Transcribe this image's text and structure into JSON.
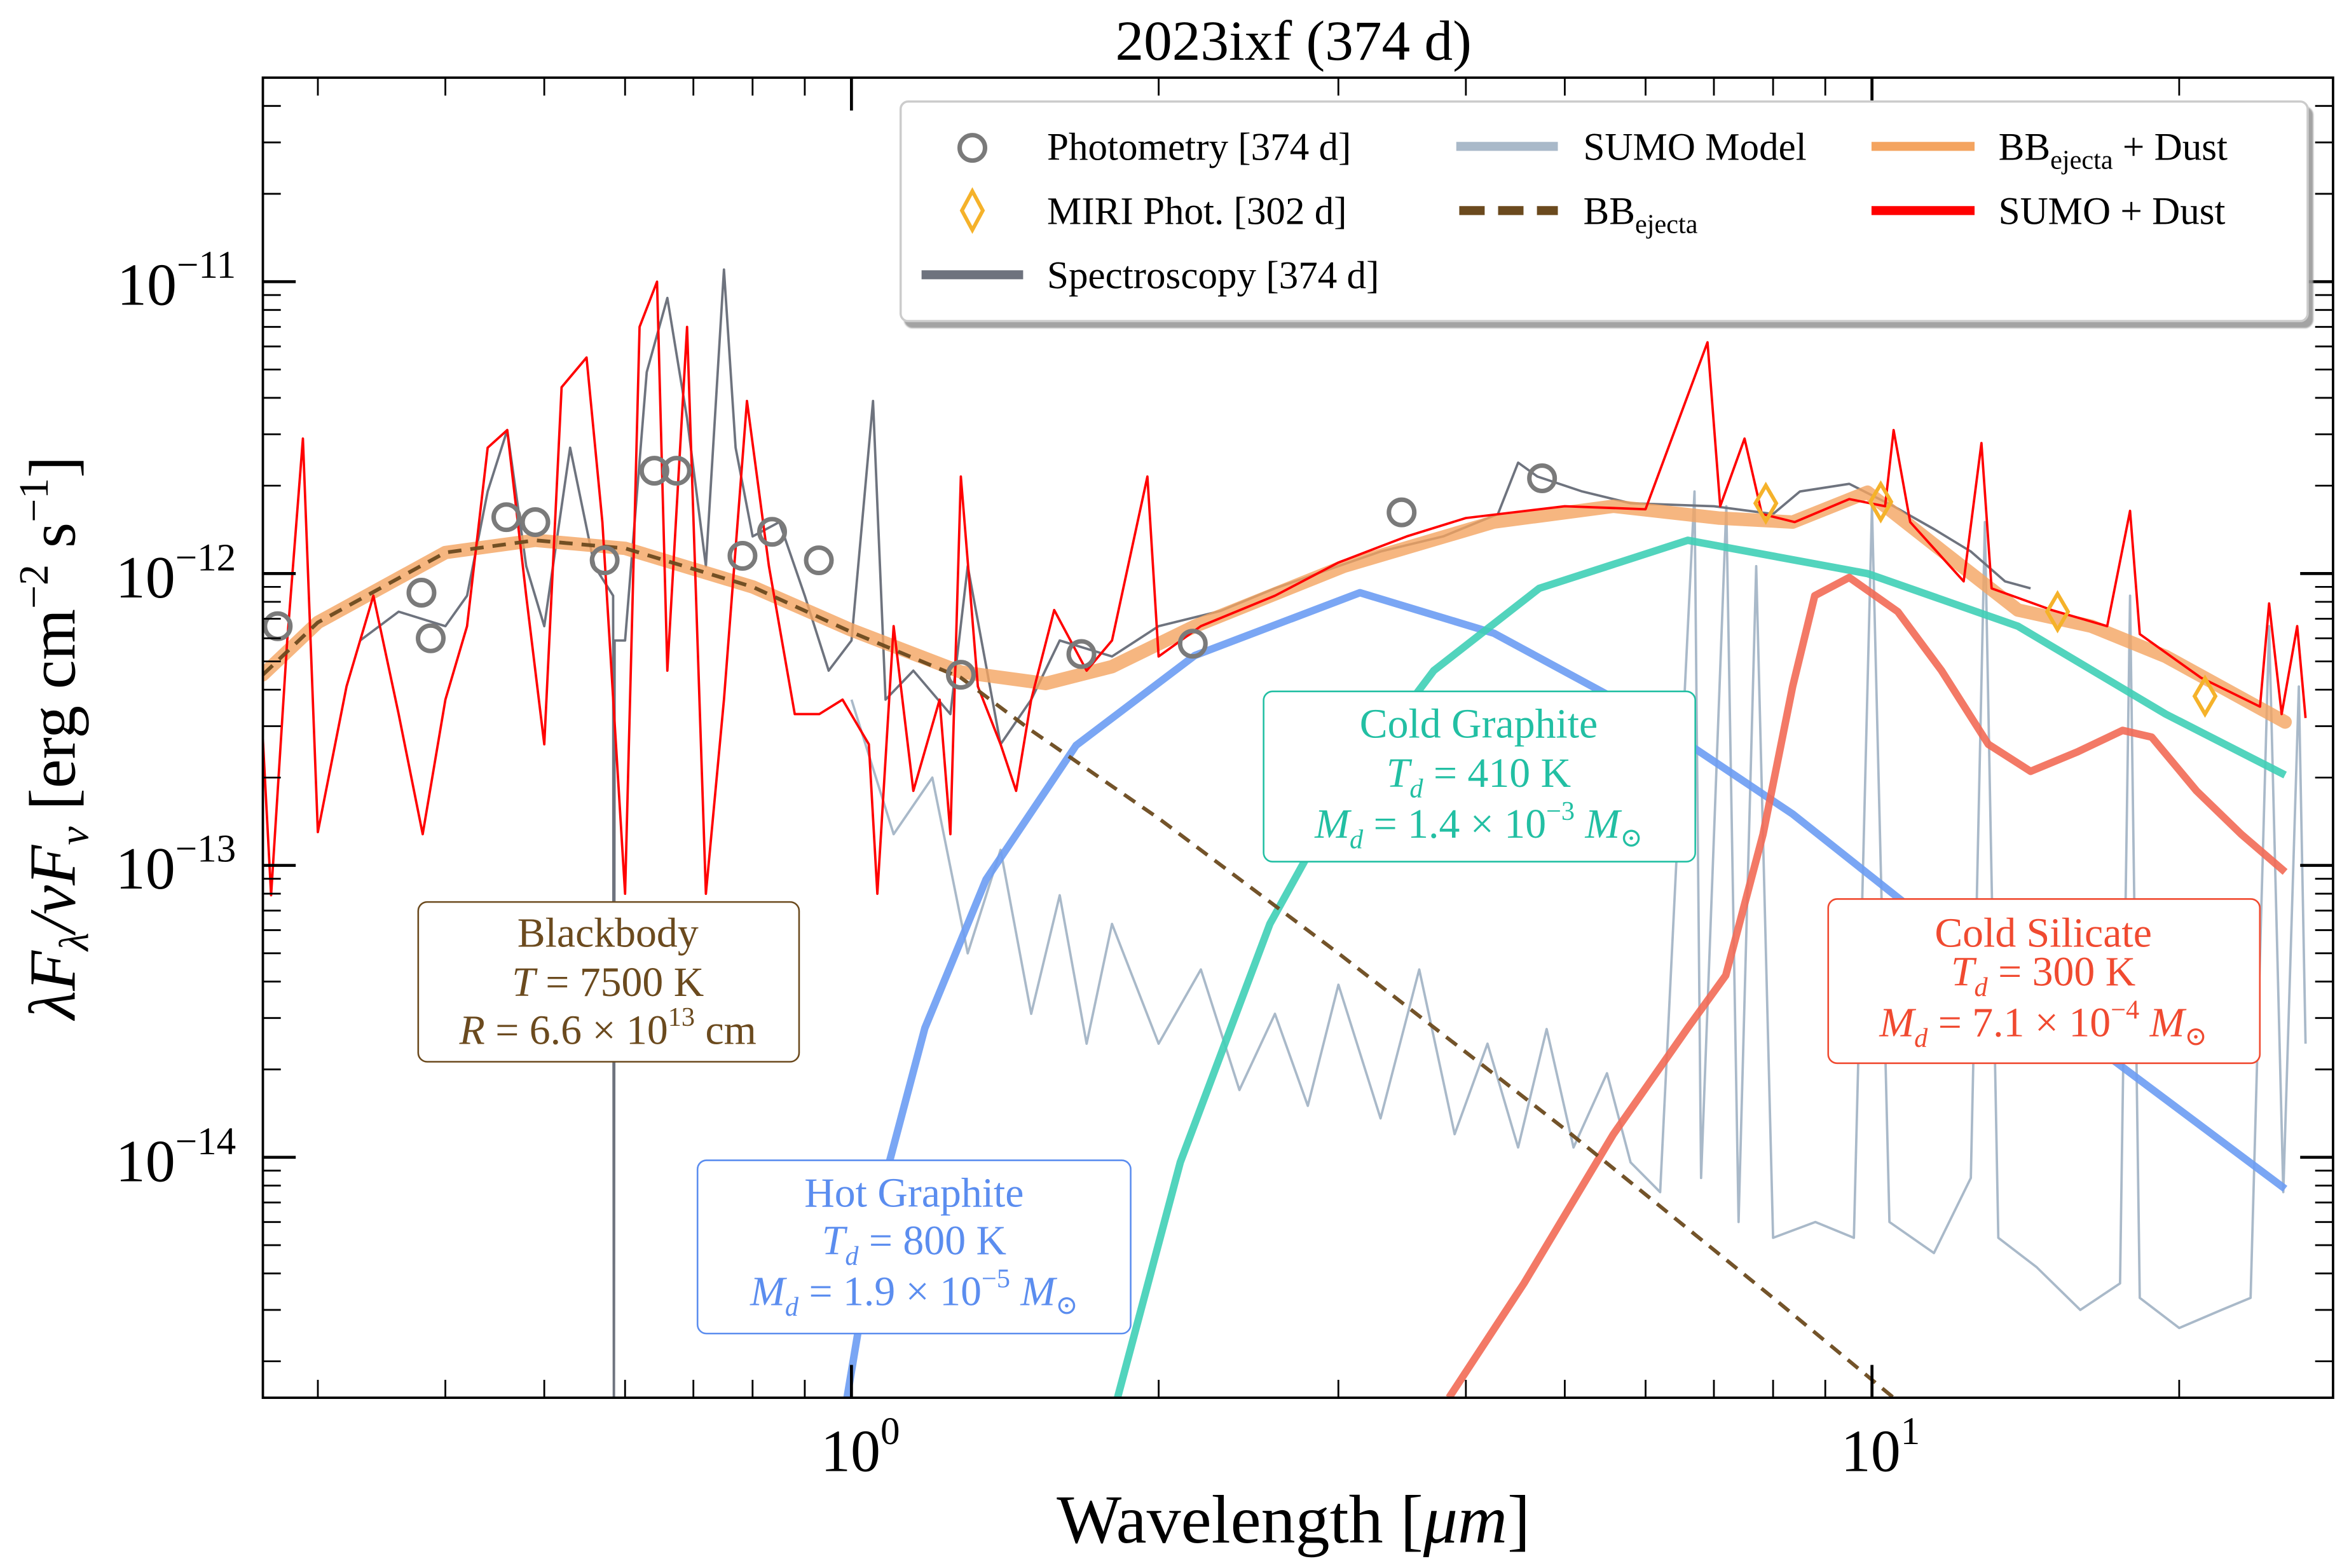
{
  "chart_data": {
    "type": "line",
    "title": "2023ixf (374 d)",
    "xlabel": {
      "text": "Wavelength [",
      "unit": "μm",
      "close": "]"
    },
    "ylabel": {
      "p1": "λF",
      "s1": "λ",
      "p2": "/νF",
      "s2": "ν",
      "p3": " [erg cm",
      "e1": "−2",
      "p4": " s",
      "e2": "−1",
      "p5": "]"
    },
    "xscale": "log",
    "yscale": "log",
    "xlim": [
      0.265,
      28.3
    ],
    "ylim": [
      1.5e-15,
      5e-11
    ],
    "grid": false,
    "legend_position": "top-right",
    "x_ticks": [
      {
        "value": 1,
        "base": "10",
        "exp": "0"
      },
      {
        "value": 10,
        "base": "10",
        "exp": "1"
      }
    ],
    "y_ticks": [
      {
        "value": 1e-11,
        "base": "10",
        "exp": "−11"
      },
      {
        "value": 1e-12,
        "base": "10",
        "exp": "−12"
      },
      {
        "value": 1e-13,
        "base": "10",
        "exp": "−13"
      },
      {
        "value": 1e-14,
        "base": "10",
        "exp": "−14"
      }
    ],
    "legend": {
      "photometry": "Photometry [374 d]",
      "miri": "MIRI Phot. [302 d]",
      "spectroscopy": "Spectroscopy [374 d]",
      "sumo_model": "SUMO Model",
      "bb_ejecta": {
        "base": "BB",
        "sub": "ejecta"
      },
      "bb_dust": {
        "base": "BB",
        "sub": "ejecta",
        "tail": " + Dust"
      },
      "sumo_dust": "SUMO + Dust"
    },
    "colors": {
      "photometry": "#7a7a7a",
      "miri": "#f5b22a",
      "spectroscopy": "#6e737e",
      "sumo_model": "#a9b9c9",
      "bb_ejecta": "#6b4a1e",
      "bb_dust": "#f4a460",
      "sumo_dust": "#ff0000",
      "hot_graphite": "#6b9cf3",
      "cold_graphite": "#3fcfb6",
      "cold_silicate": "#f26a55"
    },
    "series": {
      "photometry": {
        "x": [
          0.274,
          0.379,
          0.387,
          0.459,
          0.49,
          0.573,
          0.641,
          0.674,
          0.782,
          0.836,
          0.929,
          1.28,
          1.68,
          2.16,
          3.46,
          4.75
        ],
        "y": [
          6.6e-13,
          8.6e-13,
          6e-13,
          1.56e-12,
          1.5e-12,
          1.11e-12,
          2.25e-12,
          2.25e-12,
          1.15e-12,
          1.39e-12,
          1.11e-12,
          4.5e-13,
          5.3e-13,
          5.75e-13,
          1.62e-12,
          2.12e-12
        ]
      },
      "miri": {
        "x": [
          7.87,
          10.2,
          15.2,
          21.2
        ],
        "y": [
          1.74e-12,
          1.76e-12,
          7.4e-13,
          3.8e-13
        ]
      },
      "bb_ejecta": {
        "x": [
          0.265,
          0.3,
          0.4,
          0.49,
          0.6,
          0.8,
          1.0,
          1.28,
          1.5,
          2.0,
          3.0,
          5.0,
          8.0,
          10.5,
          11.5
        ],
        "y": [
          4.5e-13,
          6.8e-13,
          1.18e-12,
          1.3e-12,
          1.22e-12,
          9e-13,
          6.3e-13,
          4.4e-13,
          2.9e-13,
          1.45e-13,
          5e-14,
          1.25e-14,
          3.3e-15,
          1.5e-15,
          1.1e-15
        ]
      },
      "bb_dust": {
        "x": [
          0.265,
          0.3,
          0.4,
          0.49,
          0.6,
          0.8,
          1.0,
          1.28,
          1.55,
          1.8,
          2.17,
          3.04,
          4.26,
          5.58,
          7.07,
          8.36,
          9.9,
          11.7,
          13.9,
          16.4,
          19.4,
          25.4
        ],
        "y": [
          4.5e-13,
          6.8e-13,
          1.18e-12,
          1.3e-12,
          1.22e-12,
          9e-13,
          6.4e-13,
          4.6e-13,
          4.2e-13,
          4.8e-13,
          6.6e-13,
          1.06e-12,
          1.5e-12,
          1.7e-12,
          1.55e-12,
          1.5e-12,
          1.9e-12,
          1.2e-12,
          7.5e-13,
          6.6e-13,
          5.2e-13,
          3.1e-13
        ]
      },
      "hot_graphite": {
        "x": [
          0.99,
          1.07,
          1.18,
          1.355,
          1.66,
          2.17,
          3.15,
          4.26,
          5.97,
          8.36,
          11.7,
          16.4,
          25.4
        ],
        "y": [
          1.5e-15,
          7.6e-15,
          2.77e-14,
          8.95e-14,
          2.58e-13,
          5.24e-13,
          8.6e-13,
          6.25e-13,
          3.3e-13,
          1.5e-13,
          5.9e-14,
          2.45e-14,
          7.8e-15
        ]
      },
      "cold_graphite": {
        "x": [
          1.823,
          2.1,
          2.57,
          3.04,
          3.72,
          4.72,
          6.6,
          9.9,
          13.9,
          19.4,
          25.4
        ],
        "y": [
          1.5e-15,
          9.6e-15,
          6.3e-14,
          1.82e-13,
          4.65e-13,
          8.9e-13,
          1.3e-12,
          1e-12,
          6.6e-13,
          3.3e-13,
          2.04e-13
        ]
      },
      "cold_silicate": {
        "x": [
          3.85,
          4.56,
          5.58,
          6.61,
          7.19,
          7.82,
          8.36,
          8.79,
          9.5,
          10.6,
          11.7,
          13.0,
          14.3,
          15.9,
          17.6,
          18.8,
          20.8,
          23.0,
          25.4
        ],
        "y": [
          1.5e-15,
          3.7e-15,
          1.2e-14,
          2.8e-14,
          4.2e-14,
          1.28e-13,
          4.1e-13,
          8.4e-13,
          9.7e-13,
          7.4e-13,
          4.65e-13,
          2.6e-13,
          2.1e-13,
          2.45e-13,
          2.9e-13,
          2.75e-13,
          1.8e-13,
          1.28e-13,
          9.5e-14
        ]
      },
      "sumo_dust": {
        "x": [
          0.265,
          0.27,
          0.28,
          0.29,
          0.3,
          0.32,
          0.34,
          0.36,
          0.38,
          0.4,
          0.42,
          0.44,
          0.46,
          0.48,
          0.5,
          0.52,
          0.55,
          0.57,
          0.6,
          0.62,
          0.645,
          0.66,
          0.69,
          0.72,
          0.75,
          0.79,
          0.83,
          0.88,
          0.93,
          0.98,
          1.04,
          1.06,
          1.1,
          1.15,
          1.22,
          1.25,
          1.28,
          1.33,
          1.4,
          1.45,
          1.5,
          1.58,
          1.7,
          1.8,
          1.95,
          2.0,
          2.2,
          2.6,
          3.0,
          3.5,
          4.0,
          5.0,
          6.0,
          6.9,
          7.1,
          7.5,
          7.8,
          8.4,
          9.5,
          10.3,
          10.5,
          10.9,
          12.3,
          12.8,
          13.1,
          15.0,
          17.0,
          17.9,
          18.3,
          21.0,
          24.0,
          24.5,
          25.2,
          26.1,
          26.6
        ],
        "y": [
          2.7e-13,
          7.9e-14,
          5.9e-13,
          2.9e-12,
          1.3e-13,
          4.1e-13,
          8.4e-13,
          3.3e-13,
          1.28e-13,
          3.7e-13,
          6.6e-13,
          2.7e-12,
          3.1e-12,
          8.4e-13,
          2.6e-13,
          4.35e-12,
          5.5e-12,
          1.5e-12,
          8e-14,
          7e-12,
          1e-11,
          4.65e-13,
          7e-12,
          8e-14,
          3.7e-13,
          3.9e-12,
          1.06e-12,
          3.3e-13,
          3.3e-13,
          3.7e-13,
          2.6e-13,
          8e-14,
          6.6e-13,
          1.8e-13,
          3.7e-13,
          1.28e-13,
          2.15e-12,
          4.1e-13,
          2.6e-13,
          1.8e-13,
          3.7e-13,
          7.5e-13,
          4.65e-13,
          5.9e-13,
          2.15e-12,
          5.2e-13,
          6.6e-13,
          8.4e-13,
          1.09e-12,
          1.34e-12,
          1.55e-12,
          1.7e-12,
          1.66e-12,
          6.2e-12,
          1.7e-12,
          2.9e-12,
          1.6e-12,
          1.5e-12,
          1.8e-12,
          1.7e-12,
          3.1e-12,
          1.5e-12,
          9.4e-13,
          2.8e-12,
          8.9e-13,
          7.5e-13,
          6.6e-13,
          1.64e-12,
          6.2e-13,
          4.4e-13,
          3.5e-13,
          7.9e-13,
          3.3e-13,
          6.6e-13,
          3.2e-13
        ]
      },
      "spectroscopy": {
        "x": [
          0.33,
          0.36,
          0.4,
          0.42,
          0.44,
          0.46,
          0.48,
          0.5,
          0.53,
          0.56,
          0.584,
          0.585,
          0.586,
          0.6,
          0.63,
          0.66,
          0.69,
          0.72,
          0.75,
          0.77,
          0.8,
          0.85,
          0.9,
          0.95,
          1.0,
          1.05,
          1.08,
          1.15,
          1.25,
          1.3,
          1.4,
          1.5,
          1.6,
          1.8,
          2.0,
          2.3,
          2.6,
          3.0,
          3.3,
          3.8,
          4.3,
          4.5,
          4.7,
          5.2,
          5.8,
          7.0,
          8.0,
          8.5,
          9.5,
          10.5,
          11.5,
          12.5,
          13.5,
          14.3
        ],
        "y": [
          5.9e-13,
          7.4e-13,
          6.6e-13,
          8.4e-13,
          1.91e-12,
          3.1e-12,
          1.06e-12,
          6.6e-13,
          2.7e-12,
          1.06e-12,
          8.4e-13,
          1e-15,
          5.9e-13,
          5.9e-13,
          4.9e-12,
          8.8e-12,
          3.4e-12,
          1.06e-12,
          1.1e-11,
          2.7e-12,
          1.34e-12,
          1.5e-12,
          8.4e-13,
          4.65e-13,
          5.9e-13,
          3.9e-12,
          3.7e-13,
          4.65e-13,
          3.3e-13,
          1.06e-12,
          2.6e-13,
          3.7e-13,
          5.9e-13,
          5.2e-13,
          6.6e-13,
          7.45e-13,
          8.9e-13,
          1.06e-12,
          1.19e-12,
          1.34e-12,
          1.6e-12,
          2.4e-12,
          2.15e-12,
          1.91e-12,
          1.74e-12,
          1.7e-12,
          1.6e-12,
          1.91e-12,
          2.03e-12,
          1.7e-12,
          1.42e-12,
          1.19e-12,
          9.4e-13,
          8.9e-13
        ]
      },
      "sumo_model": {
        "x": [
          1.0,
          1.1,
          1.2,
          1.3,
          1.4,
          1.5,
          1.6,
          1.7,
          1.8,
          2.0,
          2.2,
          2.4,
          2.6,
          2.8,
          3.0,
          3.3,
          3.6,
          3.9,
          4.2,
          4.5,
          4.8,
          5.1,
          5.5,
          5.8,
          6.2,
          6.7,
          6.8,
          7.2,
          7.4,
          7.7,
          8.0,
          8.8,
          9.6,
          10.0,
          10.4,
          11.5,
          12.5,
          12.9,
          13.3,
          14.5,
          16.0,
          17.5,
          17.9,
          18.3,
          20.0,
          22.0,
          23.5,
          24.5,
          25.3,
          26.2,
          26.6
        ],
        "y": [
          3.7e-13,
          1.28e-13,
          2e-13,
          5e-14,
          1.13e-13,
          3.1e-14,
          7.9e-14,
          2.45e-14,
          6.3e-14,
          2.45e-14,
          4.4e-14,
          1.7e-14,
          3.1e-14,
          1.5e-14,
          3.9e-14,
          1.36e-14,
          4.4e-14,
          1.2e-14,
          2.45e-14,
          1.08e-14,
          2.75e-14,
          1.08e-14,
          1.94e-14,
          9.6e-15,
          7.6e-15,
          1.91e-12,
          8.5e-15,
          1.7e-12,
          6e-15,
          1.06e-12,
          5.3e-15,
          6e-15,
          5.3e-15,
          1.7e-12,
          6e-15,
          4.7e-15,
          8.5e-15,
          1.5e-12,
          5.3e-15,
          4.2e-15,
          3e-15,
          3.7e-15,
          8.4e-13,
          3.3e-15,
          2.6e-15,
          3e-15,
          3.3e-15,
          6.6e-13,
          7.6e-15,
          4.1e-13,
          2.45e-14
        ]
      }
    },
    "annotations": {
      "blackbody": {
        "title": "Blackbody",
        "l1a": "T",
        "l1b": " = 7500 K",
        "l2a": "R",
        "l2b": " = 6.6 × 10",
        "l2e": "13",
        "l2c": " cm"
      },
      "hot_graphite": {
        "title": "Hot Graphite",
        "l1a": "T",
        "l1s": "d",
        "l1b": " = 800 K",
        "l2a": "M",
        "l2s": "d",
        "l2b": " = 1.9 × 10",
        "l2e": "−5",
        "l2c": " M",
        "l2d": "⊙"
      },
      "cold_graphite": {
        "title": "Cold Graphite",
        "l1a": "T",
        "l1s": "d",
        "l1b": " = 410 K",
        "l2a": "M",
        "l2s": "d",
        "l2b": " = 1.4 × 10",
        "l2e": "−3",
        "l2c": " M",
        "l2d": "⊙"
      },
      "cold_silicate": {
        "title": "Cold Silicate",
        "l1a": "T",
        "l1s": "d",
        "l1b": " = 300 K",
        "l2a": "M",
        "l2s": "d",
        "l2b": " = 7.1 × 10",
        "l2e": "−4",
        "l2c": " M",
        "l2d": "⊙"
      }
    }
  }
}
